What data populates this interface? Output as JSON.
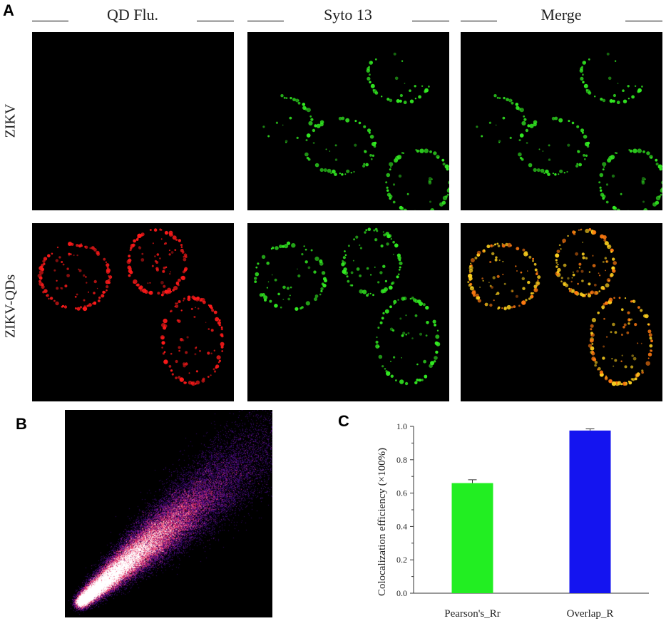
{
  "panel_a": {
    "letter": "A",
    "columns": [
      "QD Flu.",
      "Syto 13",
      "Merge"
    ],
    "rows": [
      "ZIKV",
      "ZIKV-QDs"
    ]
  },
  "panel_b": {
    "letter": "B"
  },
  "panel_c": {
    "letter": "C"
  },
  "colors": {
    "qd": "#ff1a1a",
    "syto": "#33ee22",
    "merge": "#ffd21e",
    "bar_pearson": "#22ee22",
    "bar_overlap": "#1414f0"
  },
  "chart_data": {
    "type": "bar",
    "categories": [
      "Pearson's_Rr",
      "Overlap_R"
    ],
    "values": [
      0.66,
      0.975
    ],
    "errors": [
      0.02,
      0.01
    ],
    "ylabel": "Colocalization efficiency (×100%)",
    "ylim": [
      0.0,
      1.0
    ],
    "yticks": [
      "0.0",
      "0.2",
      "0.4",
      "0.6",
      "0.8",
      "1.0"
    ]
  }
}
